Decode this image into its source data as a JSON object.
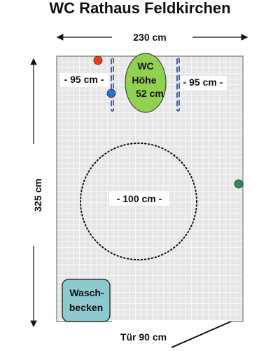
{
  "title": "WC Rathaus Feldkirchen",
  "dimensions": {
    "width": "230 cm",
    "height": "325 cm",
    "left_clearance": "- 95 cm -",
    "right_clearance": "- 95 cm -",
    "turning_circle": "- 100 cm -",
    "door": "Tür 90 cm"
  },
  "wc": {
    "line1": "WC",
    "line2": "Höhe",
    "line3": "52 cm",
    "color": "#92d050"
  },
  "sink": {
    "line1": "Wasch-",
    "line2": "becken",
    "color": "#8fc9d0"
  },
  "markers": {
    "top_red": "#e8401c",
    "left_blue": "#1f73d6",
    "right_green": "#2e8b57"
  },
  "floor_color": "#e6e6e6",
  "grab_bar_color": "#1f3fae"
}
